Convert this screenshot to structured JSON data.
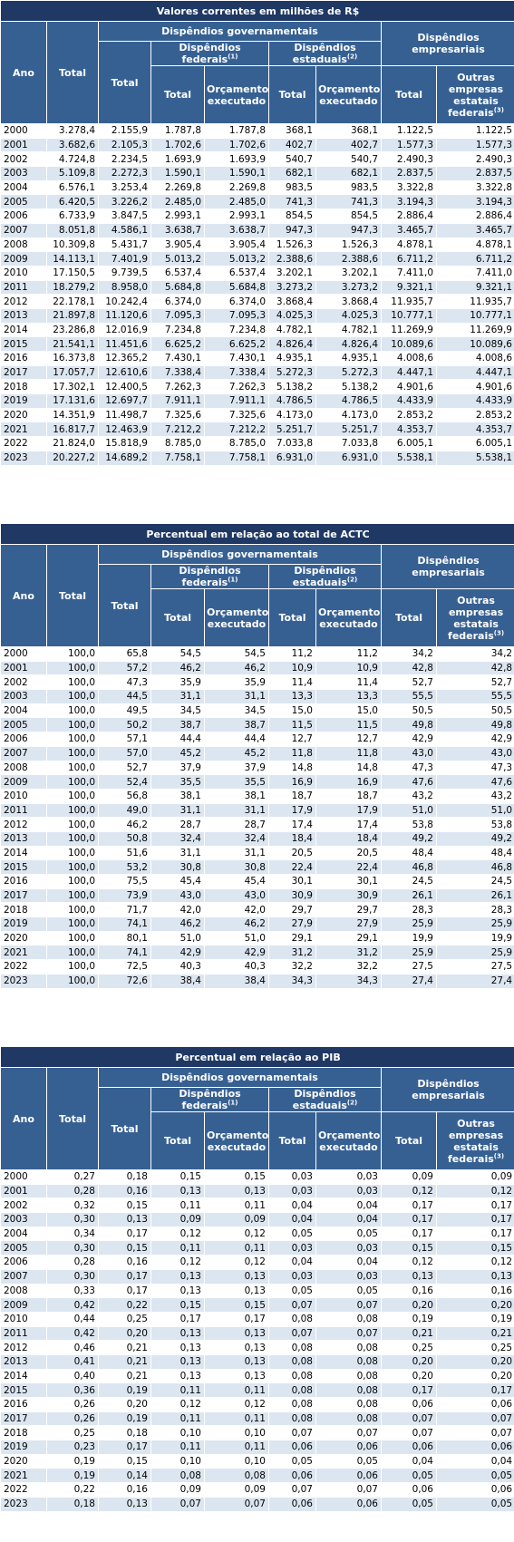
{
  "headers": {
    "ano": "Ano",
    "total": "Total",
    "disp_gov": "Dispêndios governamentais",
    "disp_fed": "Dispêndios federais",
    "disp_fed_note": "(1)",
    "disp_est": "Dispêndios estaduais",
    "disp_est_note": "(2)",
    "disp_emp": "Dispêndios empresariais",
    "total_sub": "Total",
    "orcamento": "Orçamento executado",
    "outras": "Outras empresas estatais federais",
    "outras_note": "(3)"
  },
  "tables": [
    {
      "title": "Valores correntes em milhões de R$",
      "rows": [
        [
          "2000",
          "3.278,4",
          "2.155,9",
          "1.787,8",
          "1.787,8",
          "368,1",
          "368,1",
          "1.122,5",
          "1.122,5"
        ],
        [
          "2001",
          "3.682,6",
          "2.105,3",
          "1.702,6",
          "1.702,6",
          "402,7",
          "402,7",
          "1.577,3",
          "1.577,3"
        ],
        [
          "2002",
          "4.724,8",
          "2.234,5",
          "1.693,9",
          "1.693,9",
          "540,7",
          "540,7",
          "2.490,3",
          "2.490,3"
        ],
        [
          "2003",
          "5.109,8",
          "2.272,3",
          "1.590,1",
          "1.590,1",
          "682,1",
          "682,1",
          "2.837,5",
          "2.837,5"
        ],
        [
          "2004",
          "6.576,1",
          "3.253,4",
          "2.269,8",
          "2.269,8",
          "983,5",
          "983,5",
          "3.322,8",
          "3.322,8"
        ],
        [
          "2005",
          "6.420,5",
          "3.226,2",
          "2.485,0",
          "2.485,0",
          "741,3",
          "741,3",
          "3.194,3",
          "3.194,3"
        ],
        [
          "2006",
          "6.733,9",
          "3.847,5",
          "2.993,1",
          "2.993,1",
          "854,5",
          "854,5",
          "2.886,4",
          "2.886,4"
        ],
        [
          "2007",
          "8.051,8",
          "4.586,1",
          "3.638,7",
          "3.638,7",
          "947,3",
          "947,3",
          "3.465,7",
          "3.465,7"
        ],
        [
          "2008",
          "10.309,8",
          "5.431,7",
          "3.905,4",
          "3.905,4",
          "1.526,3",
          "1.526,3",
          "4.878,1",
          "4.878,1"
        ],
        [
          "2009",
          "14.113,1",
          "7.401,9",
          "5.013,2",
          "5.013,2",
          "2.388,6",
          "2.388,6",
          "6.711,2",
          "6.711,2"
        ],
        [
          "2010",
          "17.150,5",
          "9.739,5",
          "6.537,4",
          "6.537,4",
          "3.202,1",
          "3.202,1",
          "7.411,0",
          "7.411,0"
        ],
        [
          "2011",
          "18.279,2",
          "8.958,0",
          "5.684,8",
          "5.684,8",
          "3.273,2",
          "3.273,2",
          "9.321,1",
          "9.321,1"
        ],
        [
          "2012",
          "22.178,1",
          "10.242,4",
          "6.374,0",
          "6.374,0",
          "3.868,4",
          "3.868,4",
          "11.935,7",
          "11.935,7"
        ],
        [
          "2013",
          "21.897,8",
          "11.120,6",
          "7.095,3",
          "7.095,3",
          "4.025,3",
          "4.025,3",
          "10.777,1",
          "10.777,1"
        ],
        [
          "2014",
          "23.286,8",
          "12.016,9",
          "7.234,8",
          "7.234,8",
          "4.782,1",
          "4.782,1",
          "11.269,9",
          "11.269,9"
        ],
        [
          "2015",
          "21.541,1",
          "11.451,6",
          "6.625,2",
          "6.625,2",
          "4.826,4",
          "4.826,4",
          "10.089,6",
          "10.089,6"
        ],
        [
          "2016",
          "16.373,8",
          "12.365,2",
          "7.430,1",
          "7.430,1",
          "4.935,1",
          "4.935,1",
          "4.008,6",
          "4.008,6"
        ],
        [
          "2017",
          "17.057,7",
          "12.610,6",
          "7.338,4",
          "7.338,4",
          "5.272,3",
          "5.272,3",
          "4.447,1",
          "4.447,1"
        ],
        [
          "2018",
          "17.302,1",
          "12.400,5",
          "7.262,3",
          "7.262,3",
          "5.138,2",
          "5.138,2",
          "4.901,6",
          "4.901,6"
        ],
        [
          "2019",
          "17.131,6",
          "12.697,7",
          "7.911,1",
          "7.911,1",
          "4.786,5",
          "4.786,5",
          "4.433,9",
          "4.433,9"
        ],
        [
          "2020",
          "14.351,9",
          "11.498,7",
          "7.325,6",
          "7.325,6",
          "4.173,0",
          "4.173,0",
          "2.853,2",
          "2.853,2"
        ],
        [
          "2021",
          "16.817,7",
          "12.463,9",
          "7.212,2",
          "7.212,2",
          "5.251,7",
          "5.251,7",
          "4.353,7",
          "4.353,7"
        ],
        [
          "2022",
          "21.824,0",
          "15.818,9",
          "8.785,0",
          "8.785,0",
          "7.033,8",
          "7.033,8",
          "6.005,1",
          "6.005,1"
        ],
        [
          "2023",
          "20.227,2",
          "14.689,2",
          "7.758,1",
          "7.758,1",
          "6.931,0",
          "6.931,0",
          "5.538,1",
          "5.538,1"
        ]
      ]
    },
    {
      "title": "Percentual em relação ao total de ACTC",
      "rows": [
        [
          "2000",
          "100,0",
          "65,8",
          "54,5",
          "54,5",
          "11,2",
          "11,2",
          "34,2",
          "34,2"
        ],
        [
          "2001",
          "100,0",
          "57,2",
          "46,2",
          "46,2",
          "10,9",
          "10,9",
          "42,8",
          "42,8"
        ],
        [
          "2002",
          "100,0",
          "47,3",
          "35,9",
          "35,9",
          "11,4",
          "11,4",
          "52,7",
          "52,7"
        ],
        [
          "2003",
          "100,0",
          "44,5",
          "31,1",
          "31,1",
          "13,3",
          "13,3",
          "55,5",
          "55,5"
        ],
        [
          "2004",
          "100,0",
          "49,5",
          "34,5",
          "34,5",
          "15,0",
          "15,0",
          "50,5",
          "50,5"
        ],
        [
          "2005",
          "100,0",
          "50,2",
          "38,7",
          "38,7",
          "11,5",
          "11,5",
          "49,8",
          "49,8"
        ],
        [
          "2006",
          "100,0",
          "57,1",
          "44,4",
          "44,4",
          "12,7",
          "12,7",
          "42,9",
          "42,9"
        ],
        [
          "2007",
          "100,0",
          "57,0",
          "45,2",
          "45,2",
          "11,8",
          "11,8",
          "43,0",
          "43,0"
        ],
        [
          "2008",
          "100,0",
          "52,7",
          "37,9",
          "37,9",
          "14,8",
          "14,8",
          "47,3",
          "47,3"
        ],
        [
          "2009",
          "100,0",
          "52,4",
          "35,5",
          "35,5",
          "16,9",
          "16,9",
          "47,6",
          "47,6"
        ],
        [
          "2010",
          "100,0",
          "56,8",
          "38,1",
          "38,1",
          "18,7",
          "18,7",
          "43,2",
          "43,2"
        ],
        [
          "2011",
          "100,0",
          "49,0",
          "31,1",
          "31,1",
          "17,9",
          "17,9",
          "51,0",
          "51,0"
        ],
        [
          "2012",
          "100,0",
          "46,2",
          "28,7",
          "28,7",
          "17,4",
          "17,4",
          "53,8",
          "53,8"
        ],
        [
          "2013",
          "100,0",
          "50,8",
          "32,4",
          "32,4",
          "18,4",
          "18,4",
          "49,2",
          "49,2"
        ],
        [
          "2014",
          "100,0",
          "51,6",
          "31,1",
          "31,1",
          "20,5",
          "20,5",
          "48,4",
          "48,4"
        ],
        [
          "2015",
          "100,0",
          "53,2",
          "30,8",
          "30,8",
          "22,4",
          "22,4",
          "46,8",
          "46,8"
        ],
        [
          "2016",
          "100,0",
          "75,5",
          "45,4",
          "45,4",
          "30,1",
          "30,1",
          "24,5",
          "24,5"
        ],
        [
          "2017",
          "100,0",
          "73,9",
          "43,0",
          "43,0",
          "30,9",
          "30,9",
          "26,1",
          "26,1"
        ],
        [
          "2018",
          "100,0",
          "71,7",
          "42,0",
          "42,0",
          "29,7",
          "29,7",
          "28,3",
          "28,3"
        ],
        [
          "2019",
          "100,0",
          "74,1",
          "46,2",
          "46,2",
          "27,9",
          "27,9",
          "25,9",
          "25,9"
        ],
        [
          "2020",
          "100,0",
          "80,1",
          "51,0",
          "51,0",
          "29,1",
          "29,1",
          "19,9",
          "19,9"
        ],
        [
          "2021",
          "100,0",
          "74,1",
          "42,9",
          "42,9",
          "31,2",
          "31,2",
          "25,9",
          "25,9"
        ],
        [
          "2022",
          "100,0",
          "72,5",
          "40,3",
          "40,3",
          "32,2",
          "32,2",
          "27,5",
          "27,5"
        ],
        [
          "2023",
          "100,0",
          "72,6",
          "38,4",
          "38,4",
          "34,3",
          "34,3",
          "27,4",
          "27,4"
        ]
      ]
    },
    {
      "title": "Percentual em relação ao PIB",
      "rows": [
        [
          "2000",
          "0,27",
          "0,18",
          "0,15",
          "0,15",
          "0,03",
          "0,03",
          "0,09",
          "0,09"
        ],
        [
          "2001",
          "0,28",
          "0,16",
          "0,13",
          "0,13",
          "0,03",
          "0,03",
          "0,12",
          "0,12"
        ],
        [
          "2002",
          "0,32",
          "0,15",
          "0,11",
          "0,11",
          "0,04",
          "0,04",
          "0,17",
          "0,17"
        ],
        [
          "2003",
          "0,30",
          "0,13",
          "0,09",
          "0,09",
          "0,04",
          "0,04",
          "0,17",
          "0,17"
        ],
        [
          "2004",
          "0,34",
          "0,17",
          "0,12",
          "0,12",
          "0,05",
          "0,05",
          "0,17",
          "0,17"
        ],
        [
          "2005",
          "0,30",
          "0,15",
          "0,11",
          "0,11",
          "0,03",
          "0,03",
          "0,15",
          "0,15"
        ],
        [
          "2006",
          "0,28",
          "0,16",
          "0,12",
          "0,12",
          "0,04",
          "0,04",
          "0,12",
          "0,12"
        ],
        [
          "2007",
          "0,30",
          "0,17",
          "0,13",
          "0,13",
          "0,03",
          "0,03",
          "0,13",
          "0,13"
        ],
        [
          "2008",
          "0,33",
          "0,17",
          "0,13",
          "0,13",
          "0,05",
          "0,05",
          "0,16",
          "0,16"
        ],
        [
          "2009",
          "0,42",
          "0,22",
          "0,15",
          "0,15",
          "0,07",
          "0,07",
          "0,20",
          "0,20"
        ],
        [
          "2010",
          "0,44",
          "0,25",
          "0,17",
          "0,17",
          "0,08",
          "0,08",
          "0,19",
          "0,19"
        ],
        [
          "2011",
          "0,42",
          "0,20",
          "0,13",
          "0,13",
          "0,07",
          "0,07",
          "0,21",
          "0,21"
        ],
        [
          "2012",
          "0,46",
          "0,21",
          "0,13",
          "0,13",
          "0,08",
          "0,08",
          "0,25",
          "0,25"
        ],
        [
          "2013",
          "0,41",
          "0,21",
          "0,13",
          "0,13",
          "0,08",
          "0,08",
          "0,20",
          "0,20"
        ],
        [
          "2014",
          "0,40",
          "0,21",
          "0,13",
          "0,13",
          "0,08",
          "0,08",
          "0,20",
          "0,20"
        ],
        [
          "2015",
          "0,36",
          "0,19",
          "0,11",
          "0,11",
          "0,08",
          "0,08",
          "0,17",
          "0,17"
        ],
        [
          "2016",
          "0,26",
          "0,20",
          "0,12",
          "0,12",
          "0,08",
          "0,08",
          "0,06",
          "0,06"
        ],
        [
          "2017",
          "0,26",
          "0,19",
          "0,11",
          "0,11",
          "0,08",
          "0,08",
          "0,07",
          "0,07"
        ],
        [
          "2018",
          "0,25",
          "0,18",
          "0,10",
          "0,10",
          "0,07",
          "0,07",
          "0,07",
          "0,07"
        ],
        [
          "2019",
          "0,23",
          "0,17",
          "0,11",
          "0,11",
          "0,06",
          "0,06",
          "0,06",
          "0,06"
        ],
        [
          "2020",
          "0,19",
          "0,15",
          "0,10",
          "0,10",
          "0,05",
          "0,05",
          "0,04",
          "0,04"
        ],
        [
          "2021",
          "0,19",
          "0,14",
          "0,08",
          "0,08",
          "0,06",
          "0,06",
          "0,05",
          "0,05"
        ],
        [
          "2022",
          "0,22",
          "0,16",
          "0,09",
          "0,09",
          "0,07",
          "0,07",
          "0,06",
          "0,06"
        ],
        [
          "2023",
          "0,18",
          "0,13",
          "0,07",
          "0,07",
          "0,06",
          "0,06",
          "0,05",
          "0,05"
        ]
      ]
    }
  ]
}
